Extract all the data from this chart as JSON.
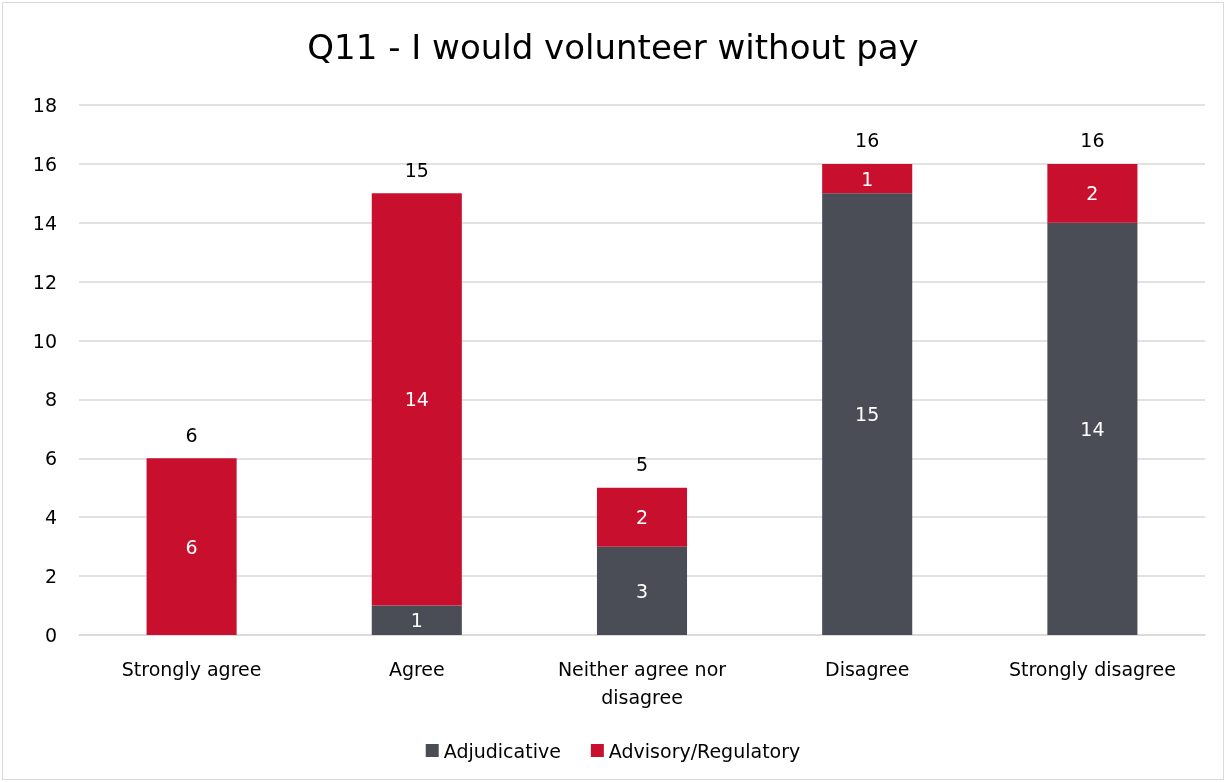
{
  "chart_data": {
    "type": "bar",
    "title": "Q11 - I would volunteer without pay",
    "categories": [
      "Strongly agree",
      "Agree",
      "Neither agree nor disagree",
      "Disagree",
      "Strongly disagree"
    ],
    "stacked": true,
    "series": [
      {
        "name": "Adjudicative",
        "color": "#4a4d55",
        "values": [
          0,
          1,
          3,
          15,
          14
        ],
        "value_labels": [
          null,
          "1",
          "3",
          "15",
          "14"
        ]
      },
      {
        "name": "Advisory/Regulatory",
        "color": "#c8102e",
        "values": [
          6,
          14,
          2,
          1,
          2
        ],
        "value_labels": [
          "6",
          "14",
          "2",
          "1",
          "2"
        ]
      }
    ],
    "totals": [
      "6",
      "15",
      "5",
      "16",
      "16"
    ],
    "ylim": [
      0,
      18
    ],
    "yticks": [
      0,
      2,
      4,
      6,
      8,
      10,
      12,
      14,
      16,
      18
    ],
    "grid": "y",
    "legend": "bottom"
  }
}
